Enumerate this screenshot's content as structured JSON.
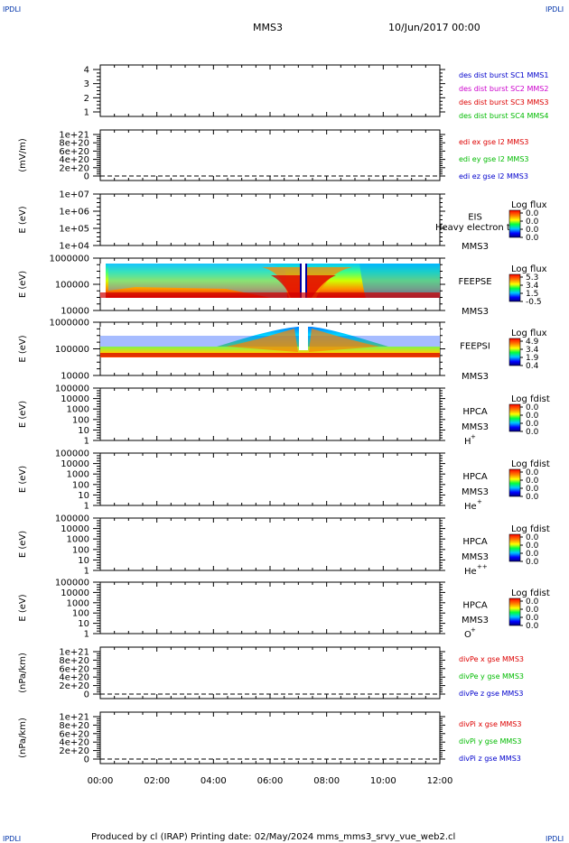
{
  "header": {
    "corner_label": "IPDLI",
    "spacecraft": "MMS3",
    "date": "10/Jun/2017 00:00"
  },
  "footer": {
    "text": "Produced by cl (IRAP)   Printing date: 02/May/2024   mms_mms3_srvy_vue_web2.cl"
  },
  "colors": {
    "blue": "#0000cc",
    "magenta": "#cc00cc",
    "red": "#dd0000",
    "green": "#00bb00"
  },
  "x_axis": {
    "tick_labels": [
      "00:00",
      "02:00",
      "04:00",
      "06:00",
      "08:00",
      "10:00",
      "12:00"
    ],
    "range_hours": [
      0,
      12
    ]
  },
  "chart_data": [
    {
      "type": "line",
      "id": "burst",
      "ytick_labels": [
        "4",
        "3",
        "2",
        "1"
      ],
      "ylim": [
        0.5,
        4.5
      ],
      "legend": [
        {
          "text": "des dist burst SC1 MMS1",
          "color": "#0000cc"
        },
        {
          "text": "des dist burst SC2 MMS2",
          "color": "#cc00cc"
        },
        {
          "text": "des dist burst SC3 MMS3",
          "color": "#dd0000"
        },
        {
          "text": "des dist burst SC4 MMS4",
          "color": "#00bb00"
        }
      ]
    },
    {
      "type": "line",
      "id": "edi",
      "ylabel": "(mV/m)",
      "ytick_labels": [
        "1e+21",
        "8e+20",
        "6e+20",
        "4e+20",
        "2e+20",
        "0"
      ],
      "legend": [
        {
          "text": "edi ex gse l2 MMS3",
          "color": "#dd0000"
        },
        {
          "text": "edi ey gse l2 MMS3",
          "color": "#00bb00"
        },
        {
          "text": "edi ez gse l2 MMS3",
          "color": "#0000cc"
        }
      ]
    },
    {
      "type": "heatmap",
      "id": "eis",
      "ylabel": "E (eV)",
      "ytick_labels": [
        "1e+07",
        "1e+06",
        "1e+05",
        "1e+04"
      ],
      "instrument": [
        "EIS",
        "MMS3"
      ],
      "overlay_text": "Heavy electron to",
      "colorbar": {
        "title": "Log flux",
        "values": [
          "0.0",
          "0.0",
          "0.0",
          "0.0"
        ]
      }
    },
    {
      "type": "heatmap",
      "id": "feepse",
      "ylabel": "E (eV)",
      "ytick_labels": [
        "1000000",
        "100000",
        "10000"
      ],
      "instrument": [
        "FEEPSE",
        "MMS3"
      ],
      "colorbar": {
        "title": "Log flux",
        "values": [
          "5.3",
          "3.4",
          "1.5",
          "-0.5"
        ]
      },
      "data_gap_hours": [
        7.0,
        7.2
      ]
    },
    {
      "type": "heatmap",
      "id": "feepsi",
      "ylabel": "E (eV)",
      "ytick_labels": [
        "1000000",
        "100000",
        "10000"
      ],
      "instrument": [
        "FEEPSI",
        "MMS3"
      ],
      "colorbar": {
        "title": "Log flux",
        "values": [
          "4.9",
          "3.4",
          "1.9",
          "0.4"
        ]
      },
      "data_gap_hours": [
        7.0,
        7.2
      ]
    },
    {
      "type": "heatmap",
      "id": "hpca-h",
      "ylabel": "E (eV)",
      "ytick_labels": [
        "100000",
        "10000",
        "1000",
        "100",
        "10",
        "1"
      ],
      "instrument": [
        "HPCA",
        "MMS3"
      ],
      "species": "H",
      "species_charge": "+",
      "colorbar": {
        "title": "Log fdist",
        "values": [
          "0.0",
          "0.0",
          "0.0",
          "0.0"
        ]
      }
    },
    {
      "type": "heatmap",
      "id": "hpca-he",
      "ylabel": "E (eV)",
      "ytick_labels": [
        "100000",
        "10000",
        "1000",
        "100",
        "10",
        "1"
      ],
      "instrument": [
        "HPCA",
        "MMS3"
      ],
      "species": "He",
      "species_charge": "+",
      "colorbar": {
        "title": "Log fdist",
        "values": [
          "0.0",
          "0.0",
          "0.0",
          "0.0"
        ]
      }
    },
    {
      "type": "heatmap",
      "id": "hpca-he2",
      "ylabel": "E (eV)",
      "ytick_labels": [
        "100000",
        "10000",
        "1000",
        "100",
        "10",
        "1"
      ],
      "instrument": [
        "HPCA",
        "MMS3"
      ],
      "species": "He",
      "species_charge": "++",
      "colorbar": {
        "title": "Log fdist",
        "values": [
          "0.0",
          "0.0",
          "0.0",
          "0.0"
        ]
      }
    },
    {
      "type": "heatmap",
      "id": "hpca-o",
      "ylabel": "E (eV)",
      "ytick_labels": [
        "100000",
        "10000",
        "1000",
        "100",
        "10",
        "1"
      ],
      "instrument": [
        "HPCA",
        "MMS3"
      ],
      "species": "O",
      "species_charge": "+",
      "colorbar": {
        "title": "Log fdist",
        "values": [
          "0.0",
          "0.0",
          "0.0",
          "0.0"
        ]
      }
    },
    {
      "type": "line",
      "id": "divpe",
      "ylabel": "(nPa/km)",
      "ytick_labels": [
        "1e+21",
        "8e+20",
        "6e+20",
        "4e+20",
        "2e+20",
        "0"
      ],
      "legend": [
        {
          "text": "divPe x gse MMS3",
          "color": "#dd0000"
        },
        {
          "text": "divPe y gse MMS3",
          "color": "#00bb00"
        },
        {
          "text": "divPe z gse MMS3",
          "color": "#0000cc"
        }
      ]
    },
    {
      "type": "line",
      "id": "divpi",
      "ylabel": "(nPa/km)",
      "ytick_labels": [
        "1e+21",
        "8e+20",
        "6e+20",
        "4e+20",
        "2e+20",
        "0"
      ],
      "legend": [
        {
          "text": "divPi x gse MMS3",
          "color": "#dd0000"
        },
        {
          "text": "divPi y gse MMS3",
          "color": "#00bb00"
        },
        {
          "text": "divPi z gse MMS3",
          "color": "#0000cc"
        }
      ]
    }
  ]
}
